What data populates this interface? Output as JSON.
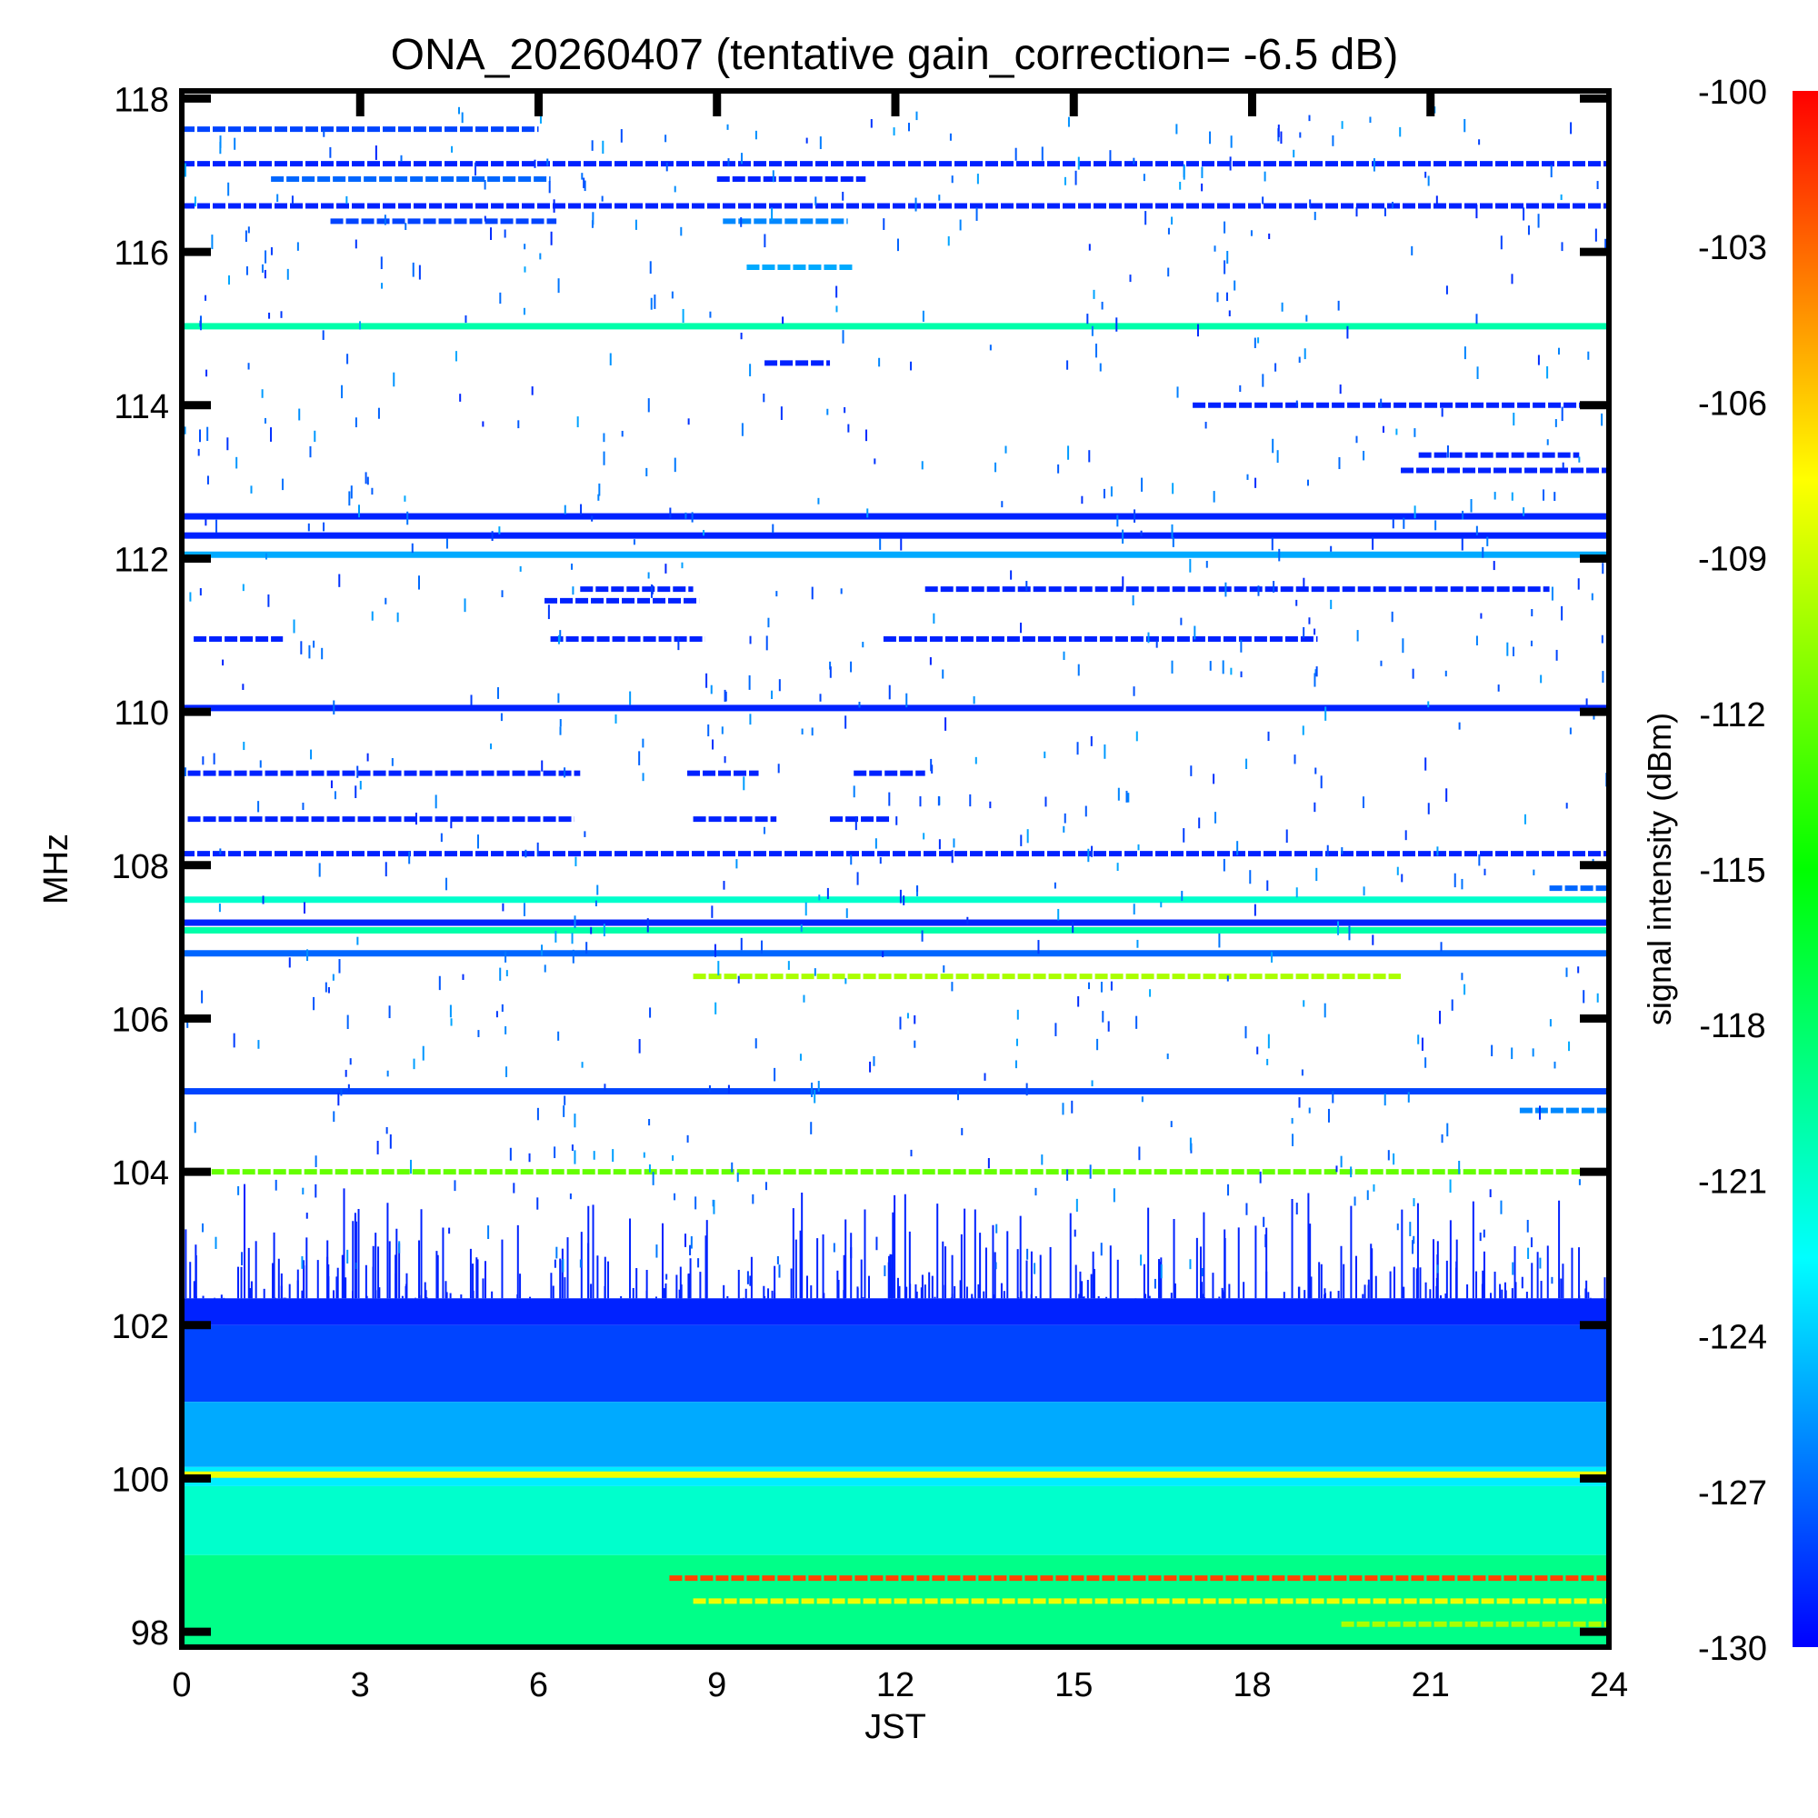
{
  "chart_data": {
    "type": "heatmap",
    "title": "ONA_20260407 (tentative gain_correction= -6.5 dB)",
    "xlabel": "JST",
    "ylabel": "MHz",
    "xlim": [
      0,
      24
    ],
    "ylim": [
      97.8,
      118.1
    ],
    "x_ticks": [
      0,
      3,
      6,
      9,
      12,
      15,
      18,
      21,
      24
    ],
    "y_ticks": [
      98,
      100,
      102,
      104,
      106,
      108,
      110,
      112,
      114,
      116,
      118
    ],
    "colorbar": {
      "label": "signal intensity (dBm)",
      "range": [
        -130,
        -100
      ],
      "ticks": [
        -100,
        -103,
        -106,
        -109,
        -112,
        -115,
        -118,
        -121,
        -124,
        -127,
        -130
      ],
      "colormap": [
        "#0000ff",
        "#0080ff",
        "#00ffff",
        "#00ff80",
        "#00ff00",
        "#80ff00",
        "#ffff00",
        "#ff8000",
        "#ff0000"
      ]
    },
    "noise_floor_bands": [
      {
        "f_min": 102.0,
        "f_max": 102.35,
        "level": -129
      },
      {
        "f_min": 101.0,
        "f_max": 102.0,
        "level": -128
      },
      {
        "f_min": 100.15,
        "f_max": 101.0,
        "level": -125
      },
      {
        "f_min": 99.0,
        "f_max": 99.9,
        "level": -121
      },
      {
        "f_min": 97.8,
        "f_max": 99.0,
        "level": -119
      }
    ],
    "continuous_lines": [
      {
        "freq": 115.03,
        "level": -120
      },
      {
        "freq": 112.55,
        "level": -129
      },
      {
        "freq": 112.3,
        "level": -129
      },
      {
        "freq": 112.05,
        "level": -125
      },
      {
        "freq": 110.05,
        "level": -129
      },
      {
        "freq": 107.55,
        "level": -121
      },
      {
        "freq": 107.25,
        "level": -129
      },
      {
        "freq": 107.15,
        "level": -120
      },
      {
        "freq": 106.85,
        "level": -127
      },
      {
        "freq": 105.05,
        "level": -128
      },
      {
        "freq": 100.05,
        "level": -108
      },
      {
        "freq": 97.95,
        "level": -119
      }
    ],
    "intermittent_lines": [
      {
        "freq": 117.6,
        "t_start": 0,
        "t_end": 6.0,
        "level": -128
      },
      {
        "freq": 117.15,
        "t_start": 0,
        "t_end": 24,
        "level": -129
      },
      {
        "freq": 116.95,
        "t_start": 1.5,
        "t_end": 6.2,
        "level": -127
      },
      {
        "freq": 116.95,
        "t_start": 9.0,
        "t_end": 11.5,
        "level": -129
      },
      {
        "freq": 116.6,
        "t_start": 0,
        "t_end": 24,
        "level": -129
      },
      {
        "freq": 116.4,
        "t_start": 2.5,
        "t_end": 6.3,
        "level": -128
      },
      {
        "freq": 116.4,
        "t_start": 9.1,
        "t_end": 11.2,
        "level": -126
      },
      {
        "freq": 115.8,
        "t_start": 9.5,
        "t_end": 11.3,
        "level": -125
      },
      {
        "freq": 114.55,
        "t_start": 9.8,
        "t_end": 10.9,
        "level": -129
      },
      {
        "freq": 114.0,
        "t_start": 17.0,
        "t_end": 24,
        "level": -129
      },
      {
        "freq": 113.35,
        "t_start": 20.8,
        "t_end": 23.5,
        "level": -129
      },
      {
        "freq": 113.15,
        "t_start": 20.5,
        "t_end": 24,
        "level": -129
      },
      {
        "freq": 111.6,
        "t_start": 6.7,
        "t_end": 8.6,
        "level": -129
      },
      {
        "freq": 111.6,
        "t_start": 12.5,
        "t_end": 23.0,
        "level": -129
      },
      {
        "freq": 111.45,
        "t_start": 6.1,
        "t_end": 8.7,
        "level": -129
      },
      {
        "freq": 110.95,
        "t_start": 0.2,
        "t_end": 1.7,
        "level": -129
      },
      {
        "freq": 110.95,
        "t_start": 6.2,
        "t_end": 8.8,
        "level": -129
      },
      {
        "freq": 110.95,
        "t_start": 11.8,
        "t_end": 19.1,
        "level": -129
      },
      {
        "freq": 109.2,
        "t_start": 0.1,
        "t_end": 6.7,
        "level": -129
      },
      {
        "freq": 109.2,
        "t_start": 8.5,
        "t_end": 9.7,
        "level": -129
      },
      {
        "freq": 109.2,
        "t_start": 11.3,
        "t_end": 12.5,
        "level": -129
      },
      {
        "freq": 108.6,
        "t_start": 0.1,
        "t_end": 6.6,
        "level": -129
      },
      {
        "freq": 108.6,
        "t_start": 8.6,
        "t_end": 10.0,
        "level": -129
      },
      {
        "freq": 108.6,
        "t_start": 10.9,
        "t_end": 11.9,
        "level": -129
      },
      {
        "freq": 108.15,
        "t_start": 0,
        "t_end": 24,
        "level": -129
      },
      {
        "freq": 107.7,
        "t_start": 23.0,
        "t_end": 24,
        "level": -127
      },
      {
        "freq": 106.55,
        "t_start": 8.6,
        "t_end": 20.5,
        "level": -110
      },
      {
        "freq": 104.8,
        "t_start": 22.5,
        "t_end": 24,
        "level": -126
      },
      {
        "freq": 104.0,
        "t_start": 0.5,
        "t_end": 23.8,
        "level": -112
      },
      {
        "freq": 98.7,
        "t_start": 8.2,
        "t_end": 24,
        "level": -102
      },
      {
        "freq": 98.4,
        "t_start": 8.6,
        "t_end": 24,
        "level": -108
      },
      {
        "freq": 98.1,
        "t_start": 19.5,
        "t_end": 24,
        "level": -110
      }
    ]
  }
}
